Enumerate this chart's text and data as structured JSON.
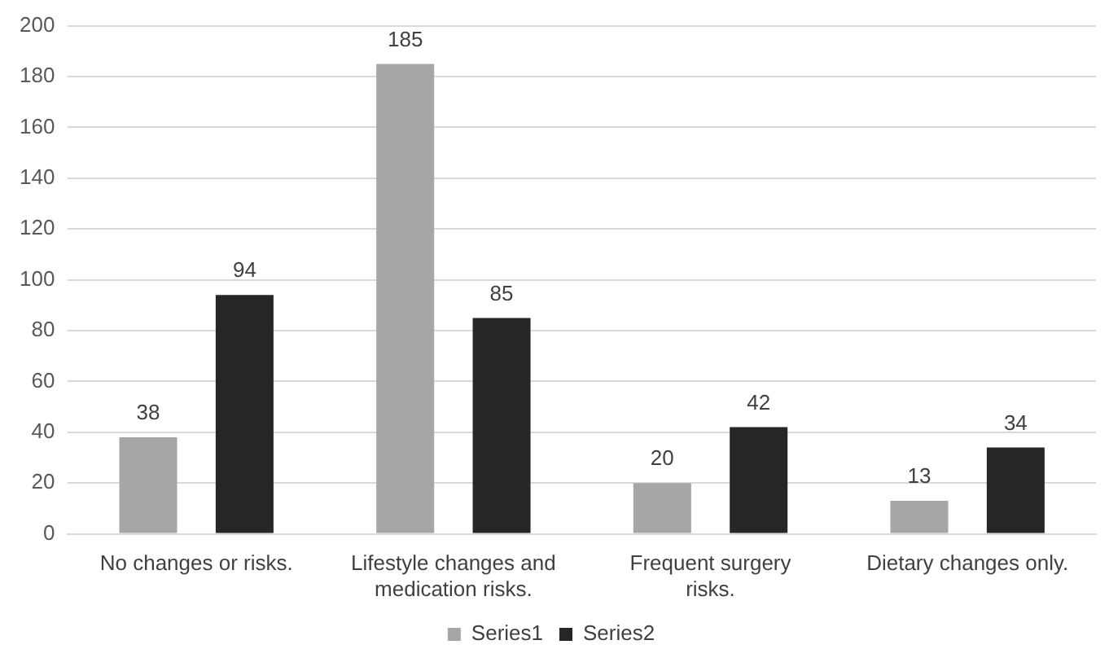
{
  "chart_data": {
    "type": "bar",
    "categories": [
      "No changes or risks.",
      "Lifestyle changes and medication risks.",
      "Frequent surgery risks.",
      "Dietary changes only."
    ],
    "series": [
      {
        "name": "Series1",
        "color": "#a6a6a6",
        "values": [
          38,
          185,
          20,
          13
        ]
      },
      {
        "name": "Series2",
        "color": "#262626",
        "values": [
          94,
          85,
          42,
          34
        ]
      }
    ],
    "ylim": [
      0,
      200
    ],
    "yticks": [
      0,
      20,
      40,
      60,
      80,
      100,
      120,
      140,
      160,
      180,
      200
    ],
    "grid": "y",
    "legend": "bottom",
    "data_labels": true
  }
}
